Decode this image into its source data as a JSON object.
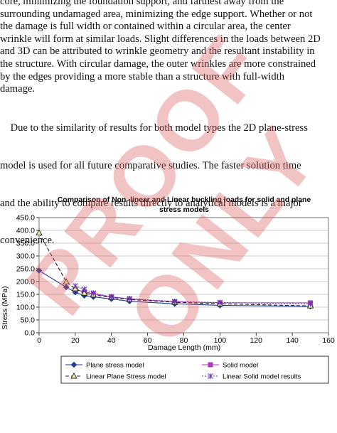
{
  "paragraphs": {
    "p1": [
      "core, minimizing the foundation support, and farthest away from the",
      "surrounding undamaged area, minimizing the edge support. Whether or not",
      "the damage is full width or contained within a circular area, the center",
      "wrinkle will form at similar loads. Slight differences in the loads between 2D",
      "and 3D can be attributed to wrinkle geometry and the resultant instability in",
      "the structure. With circular damage, the outer wrinkles are more constrained",
      "by the edges providing a more stable than a structure with full-width",
      "damage."
    ],
    "p2": [
      "    Due to the similarity of results for both model types the 2D plane-stress",
      "model is used for all future comparative studies. The faster solution time",
      "and the ability to compare results directly to analytical models is a major",
      "convenience."
    ]
  },
  "watermark": {
    "text": "PROOF ONLY",
    "color": "#de6060"
  },
  "chart_data": {
    "type": "line",
    "title": [
      "Comparison of Non–linear and Linear buckling loads  for  solid and plane",
      "stress models"
    ],
    "xlabel": "Damage Length (mm)",
    "ylabel": "Stress (MPa)",
    "xlim": [
      0,
      160
    ],
    "ylim": [
      0,
      450
    ],
    "xticks": [
      "0",
      "20",
      "40",
      "60",
      "80",
      "100",
      "120",
      "140",
      "160"
    ],
    "yticks": [
      "0.0",
      "50.0",
      "100.0",
      "150.0",
      "200.0",
      "250.0",
      "300.0",
      "350.0",
      "400.0",
      "450.0"
    ],
    "grid": "horizontal",
    "legend_position": "bottom",
    "series": [
      {
        "name": "Plane stress model",
        "color": "#1f3a93",
        "line": "solid",
        "marker": "diamond",
        "x": [
          0,
          15,
          20,
          25,
          30,
          40,
          50,
          75,
          100,
          150
        ],
        "y": [
          243,
          178,
          158,
          145,
          140,
          132,
          123,
          113,
          107,
          103
        ]
      },
      {
        "name": "Solid model",
        "color": "#b23ab8",
        "line": "solid",
        "marker": "square",
        "x": [
          20,
          25,
          30,
          40,
          50,
          75,
          100,
          150
        ],
        "y": [
          170,
          160,
          152,
          140,
          132,
          121,
          117,
          117
        ]
      },
      {
        "name": "Linear Plane Stress model",
        "color": "#222222",
        "line": "dashed",
        "marker": "triangle",
        "x": [
          0,
          15,
          20,
          25,
          30,
          40,
          50,
          75,
          100,
          150
        ],
        "y": [
          390,
          199,
          172,
          155,
          148,
          138,
          130,
          119,
          113,
          105
        ]
      },
      {
        "name": "Linear Solid model results",
        "color": "#6a3ab8",
        "line": "dotted",
        "marker": "star",
        "x": [
          20,
          25,
          30,
          40,
          50,
          75,
          100,
          150
        ],
        "y": [
          183,
          170,
          155,
          140,
          133,
          122,
          118,
          113
        ]
      }
    ]
  }
}
